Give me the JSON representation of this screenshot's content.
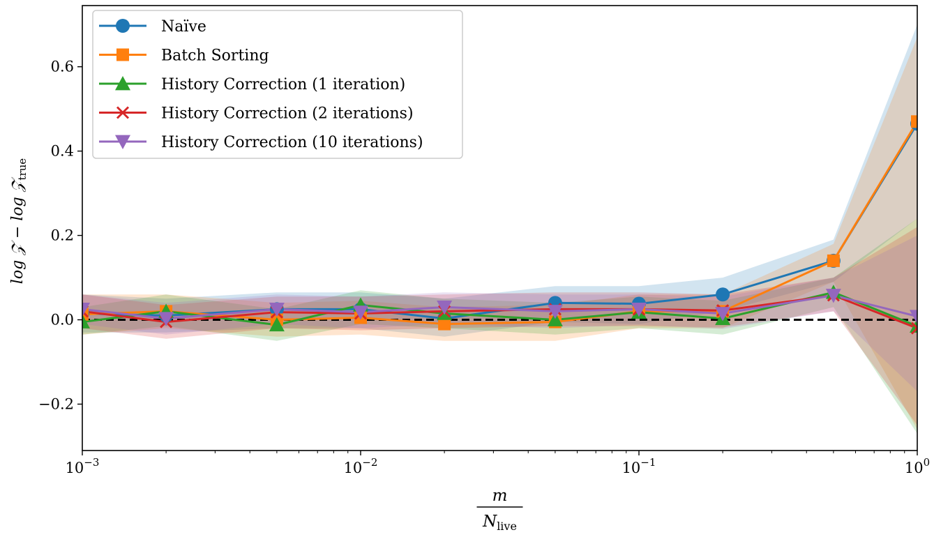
{
  "chart_data": {
    "type": "line",
    "x": [
      0.001,
      0.002,
      0.005,
      0.01,
      0.02,
      0.05,
      0.1,
      0.2,
      0.5,
      1.0
    ],
    "xscale": "log",
    "xlim": [
      0.001,
      1.0
    ],
    "ylim": [
      -0.31,
      0.745
    ],
    "grid": false,
    "legend_position": "top-left",
    "xlabel": {
      "numerator": "m",
      "denominator_base": "N",
      "denominator_sub": "live"
    },
    "ylabel": "log 𝒵 − log 𝒵",
    "ylabel_sub": "true",
    "x_ticks": [
      {
        "value": 0.001,
        "base": "10",
        "exp": "−3"
      },
      {
        "value": 0.01,
        "base": "10",
        "exp": "−2"
      },
      {
        "value": 0.1,
        "base": "10",
        "exp": "−1"
      },
      {
        "value": 1.0,
        "base": "10",
        "exp": "0"
      }
    ],
    "y_ticks": [
      {
        "value": -0.2,
        "label": "−0.2"
      },
      {
        "value": 0.0,
        "label": "0.0"
      },
      {
        "value": 0.2,
        "label": "0.2"
      },
      {
        "value": 0.4,
        "label": "0.4"
      },
      {
        "value": 0.6,
        "label": "0.6"
      }
    ],
    "reference_line": {
      "y": 0.0,
      "style": "dashed",
      "color": "#000000"
    },
    "series": [
      {
        "name": "Naïve",
        "color": "#1f77b4",
        "marker": "circle",
        "values": [
          0.015,
          0.01,
          0.025,
          0.025,
          0.003,
          0.04,
          0.038,
          0.06,
          0.14,
          0.465
        ],
        "lower": [
          -0.03,
          -0.03,
          -0.02,
          -0.02,
          -0.04,
          -0.005,
          -0.01,
          0.02,
          0.09,
          0.24
        ],
        "upper": [
          0.06,
          0.05,
          0.065,
          0.065,
          0.05,
          0.08,
          0.08,
          0.1,
          0.19,
          0.7
        ]
      },
      {
        "name": "Batch Sorting",
        "color": "#ff7f0e",
        "marker": "square",
        "values": [
          0.013,
          0.02,
          0.0,
          0.005,
          -0.01,
          -0.005,
          0.02,
          0.02,
          0.14,
          0.47
        ],
        "lower": [
          -0.035,
          -0.02,
          -0.04,
          -0.035,
          -0.05,
          -0.05,
          -0.02,
          -0.02,
          0.09,
          -0.26
        ],
        "upper": [
          0.06,
          0.06,
          0.04,
          0.045,
          0.03,
          0.035,
          0.06,
          0.06,
          0.18,
          0.67
        ]
      },
      {
        "name": "History Correction (1 iteration)",
        "color": "#2ca02c",
        "marker": "triangle-up",
        "values": [
          -0.005,
          0.02,
          -0.012,
          0.035,
          0.015,
          0.0,
          0.018,
          0.003,
          0.065,
          -0.015
        ],
        "lower": [
          -0.035,
          -0.015,
          -0.05,
          -0.01,
          -0.02,
          -0.035,
          -0.02,
          -0.035,
          0.03,
          -0.27
        ],
        "upper": [
          0.03,
          0.06,
          0.025,
          0.07,
          0.05,
          0.04,
          0.055,
          0.045,
          0.1,
          0.24
        ]
      },
      {
        "name": "History Correction (2 iterations)",
        "color": "#d62728",
        "marker": "x",
        "values": [
          0.02,
          -0.005,
          0.018,
          0.015,
          0.02,
          0.025,
          0.025,
          0.022,
          0.058,
          -0.02
        ],
        "lower": [
          -0.02,
          -0.045,
          -0.02,
          -0.025,
          -0.02,
          -0.015,
          -0.015,
          -0.018,
          0.02,
          -0.25
        ],
        "upper": [
          0.06,
          0.035,
          0.055,
          0.055,
          0.06,
          0.065,
          0.065,
          0.06,
          0.1,
          0.22
        ]
      },
      {
        "name": "History Correction (10 iterations)",
        "color": "#9467bd",
        "marker": "triangle-down",
        "values": [
          0.025,
          0.003,
          0.025,
          0.018,
          0.03,
          0.02,
          0.025,
          0.015,
          0.058,
          0.008
        ],
        "lower": [
          -0.01,
          -0.035,
          -0.01,
          -0.02,
          -0.01,
          -0.02,
          -0.012,
          -0.022,
          0.02,
          -0.17
        ],
        "upper": [
          0.06,
          0.04,
          0.06,
          0.055,
          0.065,
          0.06,
          0.06,
          0.055,
          0.1,
          0.2
        ]
      }
    ]
  }
}
